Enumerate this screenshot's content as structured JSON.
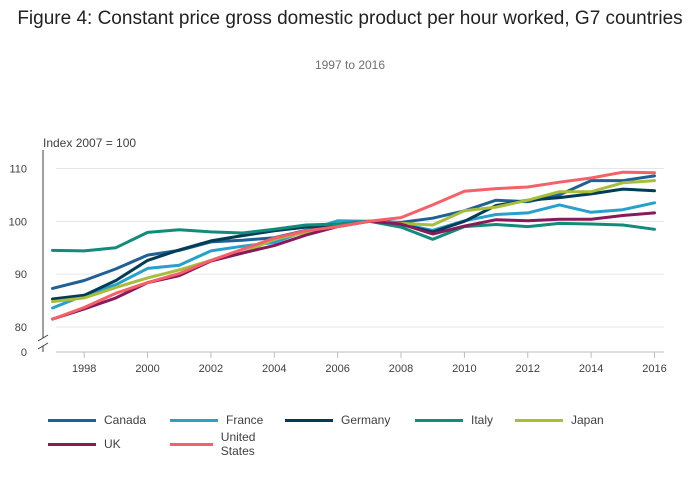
{
  "header": {
    "title": "Figure 4: Constant price gross domestic product per hour worked, G7 countries",
    "subtitle": "1997 to 2016"
  },
  "chart_data": {
    "type": "line",
    "ylabel": "Index 2007 = 100",
    "x": [
      1997,
      1998,
      1999,
      2000,
      2001,
      2002,
      2003,
      2004,
      2005,
      2006,
      2007,
      2008,
      2009,
      2010,
      2011,
      2012,
      2013,
      2014,
      2015,
      2016
    ],
    "x_ticks": [
      "1998",
      "2000",
      "2002",
      "2004",
      "2006",
      "2008",
      "2010",
      "2012",
      "2014",
      "2016"
    ],
    "y_ticks": [
      "0",
      "80",
      "90",
      "100",
      "110"
    ],
    "ylim": [
      80,
      115
    ],
    "axis_break": true,
    "grid": true,
    "series": [
      {
        "name": "Canada",
        "color": "#206095",
        "values": [
          87.3,
          88.8,
          91.0,
          93.6,
          94.5,
          96.1,
          96.4,
          96.9,
          98.3,
          99.2,
          100.0,
          99.8,
          100.6,
          102.0,
          104.0,
          103.7,
          105.0,
          107.7,
          107.7,
          108.6
        ]
      },
      {
        "name": "France",
        "color": "#27a0cc",
        "values": [
          83.6,
          86.0,
          88.0,
          91.1,
          91.7,
          94.4,
          95.3,
          96.0,
          98.2,
          100.1,
          100.0,
          99.5,
          98.3,
          100.1,
          101.3,
          101.6,
          103.1,
          101.7,
          102.2,
          103.5
        ]
      },
      {
        "name": "Germany",
        "color": "#003c57",
        "values": [
          85.3,
          86.0,
          88.8,
          92.6,
          94.6,
          96.3,
          97.3,
          98.2,
          98.9,
          99.1,
          100.0,
          99.4,
          98.0,
          100.0,
          103.0,
          104.0,
          104.5,
          105.2,
          106.1,
          105.8
        ]
      },
      {
        "name": "Italy",
        "color": "#118c7b",
        "values": [
          94.5,
          94.4,
          95.0,
          97.9,
          98.4,
          98.0,
          97.8,
          98.5,
          99.3,
          99.5,
          100.0,
          98.9,
          96.6,
          99.0,
          99.4,
          99.0,
          99.6,
          99.5,
          99.3,
          98.5
        ]
      },
      {
        "name": "Japan",
        "color": "#a8bd3a",
        "values": [
          84.8,
          85.5,
          87.5,
          89.3,
          90.8,
          92.6,
          94.0,
          96.6,
          97.9,
          99.0,
          100.0,
          99.6,
          99.3,
          102.0,
          102.7,
          104.0,
          105.6,
          105.6,
          107.3,
          107.7
        ]
      },
      {
        "name": "UK",
        "color": "#871a5b",
        "values": [
          81.5,
          83.4,
          85.5,
          88.4,
          89.7,
          92.5,
          94.0,
          95.4,
          97.4,
          99.0,
          100.0,
          99.5,
          97.6,
          99.1,
          100.3,
          100.1,
          100.4,
          100.4,
          101.1,
          101.6
        ]
      },
      {
        "name": "United States",
        "color": "#f66068",
        "values": [
          81.5,
          83.7,
          86.4,
          88.4,
          90.1,
          92.6,
          94.7,
          96.8,
          98.2,
          99.0,
          100.0,
          100.7,
          103.1,
          105.7,
          106.2,
          106.5,
          107.4,
          108.2,
          109.3,
          109.2
        ]
      }
    ]
  }
}
